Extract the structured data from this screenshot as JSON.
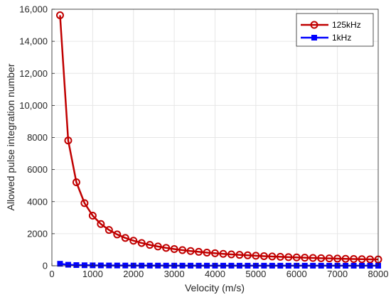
{
  "chart_data": {
    "type": "line",
    "xlabel": "Velocity (m/s)",
    "ylabel": "Allowed pulse integration number",
    "xlim": [
      0,
      8000
    ],
    "ylim": [
      0,
      16000
    ],
    "xticks": [
      0,
      1000,
      2000,
      3000,
      4000,
      5000,
      6000,
      7000,
      8000
    ],
    "xtick_labels": [
      "0",
      "1000",
      "2000",
      "3000",
      "4000",
      "5000",
      "6000",
      "7000",
      "8000"
    ],
    "yticks": [
      0,
      2000,
      4000,
      6000,
      8000,
      10000,
      12000,
      14000,
      16000
    ],
    "ytick_labels": [
      "0",
      "2000",
      "4000",
      "6000",
      "8000",
      "10,000",
      "12,000",
      "14,000",
      "16,000"
    ],
    "grid": true,
    "legend_position": "top-right",
    "x": [
      200,
      400,
      600,
      800,
      1000,
      1200,
      1400,
      1600,
      1800,
      2000,
      2200,
      2400,
      2600,
      2800,
      3000,
      3200,
      3400,
      3600,
      3800,
      4000,
      4200,
      4400,
      4600,
      4800,
      5000,
      5200,
      5400,
      5600,
      5800,
      6000,
      6200,
      6400,
      6600,
      6800,
      7000,
      7200,
      7400,
      7600,
      7800,
      8000
    ],
    "series": [
      {
        "name": "125kHz",
        "color": "#c00000",
        "marker": "circle",
        "values": [
          15625,
          7813,
          5208,
          3906,
          3125,
          2604,
          2232,
          1953,
          1736,
          1563,
          1420,
          1302,
          1202,
          1116,
          1042,
          977,
          919,
          868,
          822,
          781,
          744,
          710,
          679,
          651,
          625,
          601,
          579,
          558,
          539,
          521,
          504,
          488,
          473,
          460,
          446,
          434,
          422,
          411,
          401,
          391
        ]
      },
      {
        "name": "1kHz",
        "color": "#0000ff",
        "marker": "square",
        "values": [
          125,
          63,
          42,
          31,
          25,
          21,
          18,
          16,
          14,
          13,
          11,
          10,
          10,
          9,
          8,
          8,
          7,
          7,
          7,
          6,
          6,
          6,
          5,
          5,
          5,
          5,
          5,
          4,
          4,
          4,
          4,
          4,
          4,
          4,
          4,
          3,
          3,
          3,
          3,
          3
        ]
      }
    ]
  }
}
